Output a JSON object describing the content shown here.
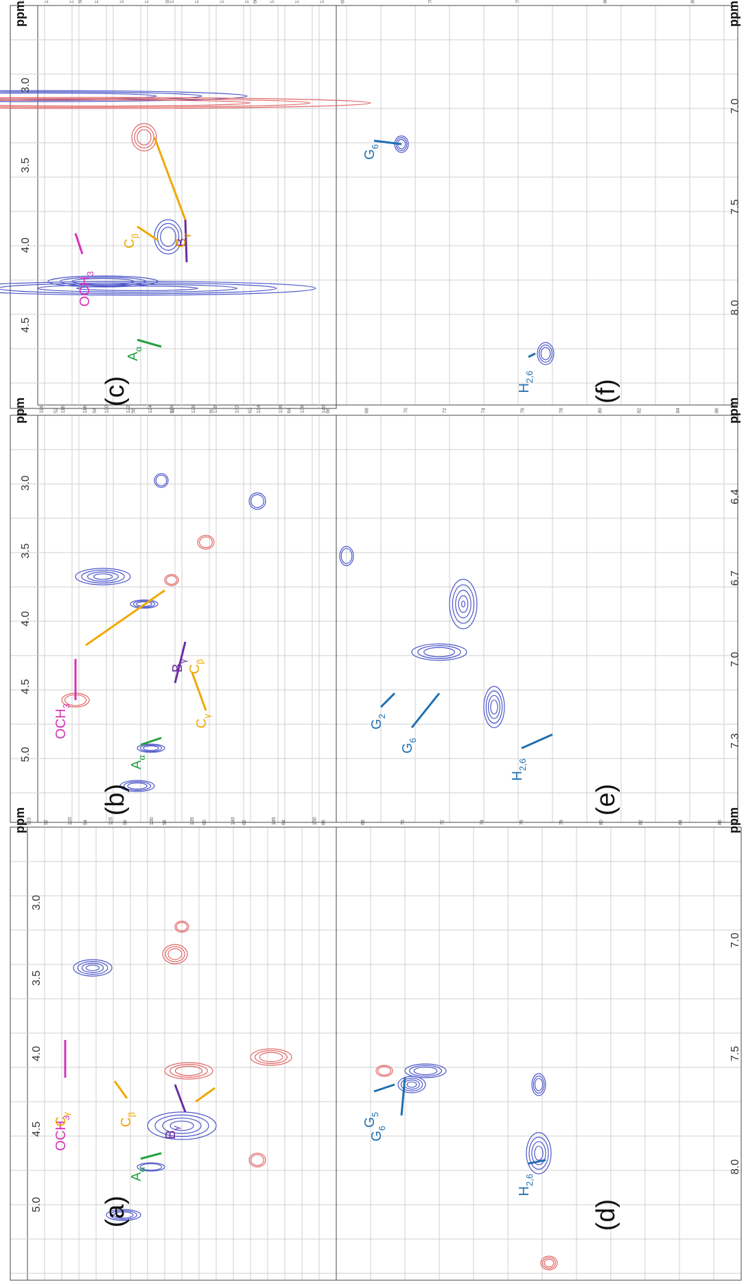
{
  "colors": {
    "positive": "#4a55c8",
    "negative": "#e06464",
    "grid": "#cfcfcf",
    "frame": "#444444",
    "ocme": "#d633b8",
    "a_alpha": "#22a040",
    "b_gamma": "#6a2ea0",
    "c_label": "#f0a800",
    "aromatic": "#1f6eb0"
  },
  "chart_data": [
    {
      "type": "scatter",
      "panel_label": "(a)",
      "axis_label": "ppm",
      "x_ticks": [
        "5.0",
        "4.5",
        "4.0",
        "3.5",
        "3.0"
      ],
      "y_ticks": [
        "52",
        "54",
        "56",
        "58",
        "60",
        "62",
        "64",
        "66",
        "68",
        "70",
        "72",
        "74",
        "76",
        "78",
        "80",
        "82",
        "84",
        "86"
      ],
      "annotations": [
        {
          "label": "A",
          "sub": "α",
          "role": "a_alpha"
        },
        {
          "label": "OCH",
          "sub": "3",
          "role": "ocme"
        },
        {
          "label": "B",
          "sub": "γ",
          "role": "b_gamma"
        },
        {
          "label": "C",
          "sub": "γ",
          "role": "c_label"
        },
        {
          "label": "C",
          "sub": "β",
          "role": "c_label"
        }
      ]
    },
    {
      "type": "scatter",
      "panel_label": "(b)",
      "axis_label": "ppm",
      "x_ticks": [
        "5.0",
        "4.5",
        "4.0",
        "3.5",
        "3.0"
      ],
      "y_ticks": [
        "52",
        "54",
        "56",
        "58",
        "60",
        "62",
        "64",
        "66",
        "68",
        "70",
        "72",
        "74",
        "76",
        "78",
        "80",
        "82",
        "84",
        "86"
      ],
      "annotations": [
        {
          "label": "A",
          "sub": "α",
          "role": "a_alpha"
        },
        {
          "label": "OCH",
          "sub": "3",
          "role": "ocme"
        },
        {
          "label": "B",
          "sub": "γ",
          "role": "b_gamma"
        },
        {
          "label": "C",
          "sub": "γ",
          "role": "c_label"
        },
        {
          "label": "C",
          "sub": "β",
          "role": "c_label"
        }
      ]
    },
    {
      "type": "scatter",
      "panel_label": "(c)",
      "axis_label": "ppm",
      "x_ticks": [
        "4.5",
        "4.0",
        "3.5",
        "3.0"
      ],
      "y_ticks": [
        "50",
        "55",
        "60",
        "65",
        "70",
        "75",
        "80",
        "85"
      ],
      "annotations": [
        {
          "label": "A",
          "sub": "α",
          "role": "a_alpha"
        },
        {
          "label": "OCH",
          "sub": "3",
          "role": "ocme"
        },
        {
          "label": "B",
          "sub": "γ",
          "role": "b_gamma"
        },
        {
          "label": "C",
          "sub": "γ",
          "role": "c_label"
        },
        {
          "label": "C",
          "sub": "β",
          "role": "c_label"
        }
      ]
    },
    {
      "type": "scatter",
      "panel_label": "(d)",
      "axis_label": "ppm",
      "x_ticks": [
        "8.0",
        "7.5",
        "7.0"
      ],
      "y_ticks": [
        "115",
        "120",
        "125",
        "130",
        "135",
        "140",
        "145",
        "150"
      ],
      "annotations": [
        {
          "label": "H",
          "sub": "2,6",
          "role": "aromatic"
        },
        {
          "label": "G",
          "sub": "5",
          "role": "aromatic"
        },
        {
          "label": "G",
          "sub": "6",
          "role": "aromatic"
        }
      ]
    },
    {
      "type": "scatter",
      "panel_label": "(e)",
      "axis_label": "ppm",
      "x_ticks": [
        "7.3",
        "7.0",
        "6.7",
        "6.4"
      ],
      "y_ticks": [
        "112",
        "114",
        "116",
        "118",
        "120",
        "122",
        "124",
        "126",
        "128",
        "130",
        "132",
        "134",
        "136",
        "138",
        "140"
      ],
      "annotations": [
        {
          "label": "H",
          "sub": "2,6",
          "role": "aromatic"
        },
        {
          "label": "G",
          "sub": "6",
          "role": "aromatic"
        },
        {
          "label": "G",
          "sub": "2",
          "role": "aromatic"
        }
      ]
    },
    {
      "type": "scatter",
      "panel_label": "(f)",
      "axis_label": "ppm",
      "x_ticks": [
        "8.0",
        "7.5",
        "7.0"
      ],
      "y_ticks": [
        "114",
        "116",
        "118",
        "120",
        "122",
        "124",
        "126",
        "128",
        "130",
        "132",
        "134",
        "136",
        "138"
      ],
      "annotations": [
        {
          "label": "H",
          "sub": "2,6",
          "role": "aromatic"
        },
        {
          "label": "G",
          "sub": "6",
          "role": "aromatic"
        }
      ]
    }
  ]
}
